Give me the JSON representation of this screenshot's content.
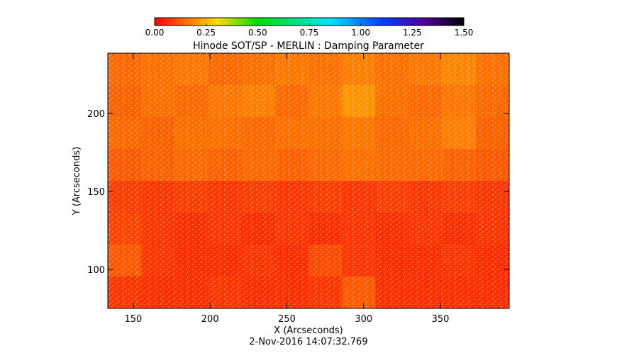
{
  "chart_data": {
    "type": "heatmap",
    "title": "Hinode SOT/SP - MERLIN : Damping Parameter",
    "xlabel": "X (Arcseconds)",
    "ylabel": "Y (Arcseconds)",
    "footer": "2-Nov-2016 14:07:32.769",
    "xlim": [
      133.4,
      394.8
    ],
    "ylim": [
      75,
      238.6
    ],
    "xticks": [
      150,
      200,
      250,
      300,
      350
    ],
    "yticks": [
      100,
      150,
      200
    ],
    "colorbar_lim": [
      0,
      1.5
    ],
    "colorbar_ticks": [
      {
        "value": 0,
        "label": "0.00"
      },
      {
        "value": 0.25,
        "label": "0.25"
      },
      {
        "value": 0.5,
        "label": "0.50"
      },
      {
        "value": 0.75,
        "label": "0.75"
      },
      {
        "value": 1,
        "label": "1.00"
      },
      {
        "value": 1.25,
        "label": "1.25"
      },
      {
        "value": 1.5,
        "label": "1.50"
      }
    ],
    "colormap": [
      {
        "value": 0,
        "color": "#ff0000"
      },
      {
        "value": 0.3,
        "color": "#ffdd00"
      },
      {
        "value": 0.5,
        "color": "#00e000"
      },
      {
        "value": 0.85,
        "color": "#00e0ff"
      },
      {
        "value": 1.1,
        "color": "#0040ff"
      },
      {
        "value": 1.3,
        "color": "#5000a0"
      },
      {
        "value": 1.5,
        "color": "#000000"
      }
    ],
    "z": [
      [
        0.14,
        0.15,
        0.16,
        0.14,
        0.15,
        0.16,
        0.15,
        0.17,
        0.15,
        0.16,
        0.18,
        0.15
      ],
      [
        0.13,
        0.15,
        0.14,
        0.16,
        0.17,
        0.14,
        0.16,
        0.2,
        0.15,
        0.14,
        0.16,
        0.14
      ],
      [
        0.14,
        0.13,
        0.15,
        0.15,
        0.14,
        0.15,
        0.15,
        0.16,
        0.14,
        0.15,
        0.17,
        0.13
      ],
      [
        0.12,
        0.13,
        0.14,
        0.13,
        0.14,
        0.13,
        0.14,
        0.15,
        0.14,
        0.14,
        0.13,
        0.12
      ],
      [
        0.08,
        0.07,
        0.08,
        0.07,
        0.08,
        0.07,
        0.08,
        0.07,
        0.08,
        0.07,
        0.08,
        0.07
      ],
      [
        0.09,
        0.07,
        0.06,
        0.07,
        0.06,
        0.07,
        0.06,
        0.07,
        0.06,
        0.07,
        0.06,
        0.07
      ],
      [
        0.12,
        0.07,
        0.06,
        0.06,
        0.07,
        0.06,
        0.1,
        0.07,
        0.06,
        0.06,
        0.07,
        0.06
      ],
      [
        0.07,
        0.06,
        0.06,
        0.07,
        0.06,
        0.06,
        0.07,
        0.12,
        0.06,
        0.06,
        0.06,
        0.06
      ]
    ]
  }
}
